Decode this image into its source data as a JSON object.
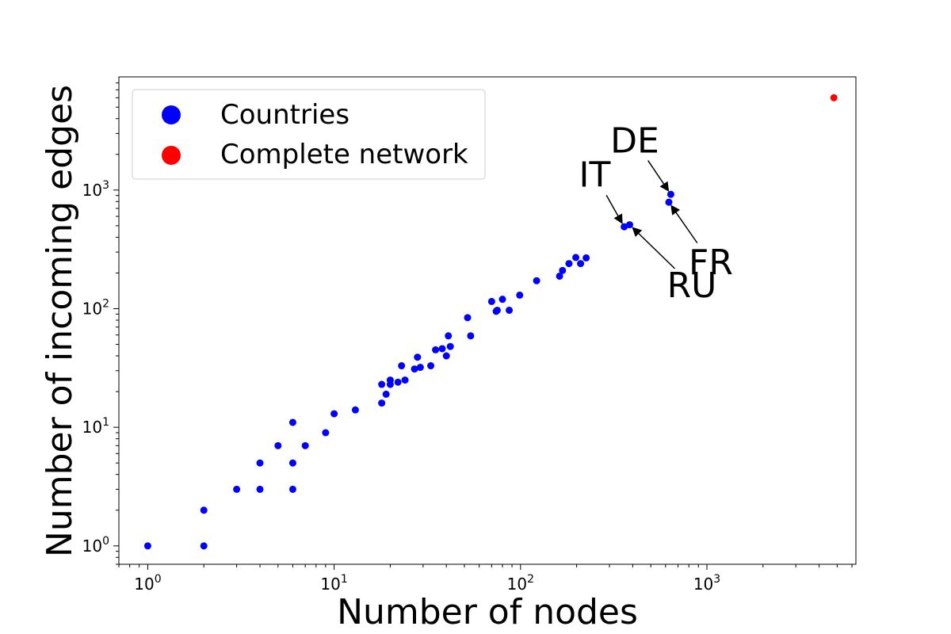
{
  "chart_data": {
    "type": "scatter",
    "xlabel": "Number of nodes",
    "ylabel": "Number of incoming edges",
    "x_scale": "log",
    "y_scale": "log",
    "xlim": [
      0.7,
      6300
    ],
    "ylim": [
      0.7,
      9000
    ],
    "x_ticks": [
      {
        "value": 1,
        "base": "10",
        "exp": "0"
      },
      {
        "value": 10,
        "base": "10",
        "exp": "1"
      },
      {
        "value": 100,
        "base": "10",
        "exp": "2"
      },
      {
        "value": 1000,
        "base": "10",
        "exp": "3"
      }
    ],
    "y_ticks": [
      {
        "value": 1,
        "base": "10",
        "exp": "0"
      },
      {
        "value": 10,
        "base": "10",
        "exp": "1"
      },
      {
        "value": 100,
        "base": "10",
        "exp": "2"
      },
      {
        "value": 1000,
        "base": "10",
        "exp": "3"
      }
    ],
    "grid": false,
    "legend": {
      "placement": "top-left",
      "entries": [
        {
          "label": "Countries",
          "color": "#0000ff"
        },
        {
          "label": "Complete network",
          "color": "#ff0000"
        }
      ]
    },
    "series": [
      {
        "name": "Countries",
        "color": "#0000ff",
        "points": [
          [
            1,
            1
          ],
          [
            2,
            1
          ],
          [
            2,
            2
          ],
          [
            3,
            3
          ],
          [
            4,
            3
          ],
          [
            4,
            5
          ],
          [
            5,
            7
          ],
          [
            6,
            3
          ],
          [
            6,
            5
          ],
          [
            6,
            11
          ],
          [
            7,
            7
          ],
          [
            9,
            9
          ],
          [
            10,
            13
          ],
          [
            13,
            14
          ],
          [
            18,
            16
          ],
          [
            18,
            23
          ],
          [
            19,
            19
          ],
          [
            20,
            23
          ],
          [
            20,
            25
          ],
          [
            22,
            24
          ],
          [
            23,
            33
          ],
          [
            24,
            25
          ],
          [
            27,
            31
          ],
          [
            28,
            39
          ],
          [
            29,
            32
          ],
          [
            33,
            33
          ],
          [
            35,
            45
          ],
          [
            38,
            46
          ],
          [
            40,
            40
          ],
          [
            41,
            59
          ],
          [
            42,
            48
          ],
          [
            52,
            84
          ],
          [
            54,
            59
          ],
          [
            70,
            115
          ],
          [
            74,
            95
          ],
          [
            75,
            97
          ],
          [
            80,
            120
          ],
          [
            87,
            97
          ],
          [
            99,
            130
          ],
          [
            122,
            172
          ],
          [
            162,
            188
          ],
          [
            168,
            210
          ],
          [
            182,
            240
          ],
          [
            198,
            270
          ],
          [
            210,
            240
          ],
          [
            225,
            268
          ],
          [
            360,
            490
          ],
          [
            385,
            510
          ],
          [
            625,
            790
          ],
          [
            640,
            920
          ]
        ]
      },
      {
        "name": "Complete network",
        "color": "#ff0000",
        "points": [
          [
            4800,
            6000
          ]
        ]
      }
    ],
    "annotations": [
      {
        "text": "DE",
        "point": [
          640,
          920
        ],
        "text_pos": [
          410,
          2600
        ]
      },
      {
        "text": "IT",
        "point": [
          360,
          490
        ],
        "text_pos": [
          250,
          1350
        ]
      },
      {
        "text": "FR",
        "point": [
          625,
          790
        ],
        "text_pos": [
          1050,
          245
        ]
      },
      {
        "text": "RU",
        "point": [
          385,
          510
        ],
        "text_pos": [
          830,
          158
        ]
      }
    ]
  }
}
